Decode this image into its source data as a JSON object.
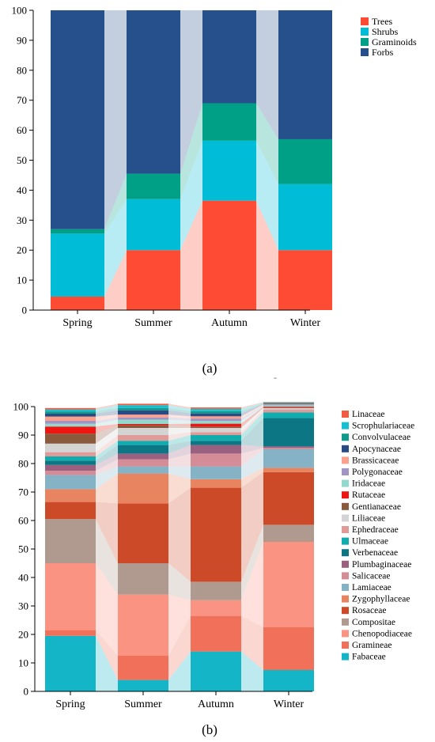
{
  "panel_a": {
    "label": "(a)",
    "label_inner": "a",
    "chart_data": {
      "type": "bar",
      "stacked": true,
      "categories": [
        "Spring",
        "Summer",
        "Autumn",
        "Winter"
      ],
      "ylim": [
        0,
        100
      ],
      "yticks": [
        0,
        10,
        20,
        30,
        40,
        50,
        60,
        70,
        80,
        90,
        100
      ],
      "title": "",
      "xlabel": "",
      "ylabel": "",
      "legend_position": "top-right",
      "series": [
        {
          "name": "Trees",
          "color": "#fd4c33",
          "values": [
            4.5,
            20,
            36.5,
            20
          ]
        },
        {
          "name": "Shrubs",
          "color": "#00bcd6",
          "values": [
            21,
            17,
            20,
            22
          ]
        },
        {
          "name": "Graminoids",
          "color": "#00a086",
          "values": [
            1.5,
            8.5,
            12.5,
            15
          ]
        },
        {
          "name": "Forbs",
          "color": "#26508c",
          "values": [
            73,
            54.5,
            31,
            43
          ]
        }
      ]
    }
  },
  "panel_b": {
    "label": "(b)",
    "label_inner": "b",
    "chart_data": {
      "type": "bar",
      "stacked": true,
      "categories": [
        "Spring",
        "Summer",
        "Autumn",
        "Winter"
      ],
      "ylim": [
        0,
        100
      ],
      "yticks": [
        0,
        10,
        20,
        30,
        40,
        50,
        60,
        70,
        80,
        90,
        100
      ],
      "title": "",
      "xlabel": "",
      "ylabel": "",
      "legend_position": "top-right",
      "series": [
        {
          "name": "Fabaceae",
          "color": "#13b5c6",
          "values": [
            19.5,
            4,
            14,
            7.5
          ]
        },
        {
          "name": "Gramineae",
          "color": "#f0705a",
          "values": [
            2,
            8.5,
            12.5,
            15
          ]
        },
        {
          "name": "Chenopodiaceae",
          "color": "#fb9383",
          "values": [
            23.5,
            21.5,
            5.5,
            30
          ]
        },
        {
          "name": "Compositae",
          "color": "#b09a8f",
          "values": [
            15.5,
            11,
            6.5,
            6
          ]
        },
        {
          "name": "Rosaceae",
          "color": "#cd4a28",
          "values": [
            6,
            21,
            33,
            18.5
          ]
        },
        {
          "name": "Zygophyllaceae",
          "color": "#e88460",
          "values": [
            4.5,
            10.5,
            3,
            1.5
          ]
        },
        {
          "name": "Lamiaceae",
          "color": "#85b2c4",
          "values": [
            5,
            2.5,
            4.5,
            6.5
          ]
        },
        {
          "name": "Salicaceae",
          "color": "#d48c96",
          "values": [
            1.5,
            2.5,
            4.5,
            0.5
          ]
        },
        {
          "name": "Plumbaginaceae",
          "color": "#9a6080",
          "values": [
            2,
            2,
            3,
            0.5
          ]
        },
        {
          "name": "Verbenaceae",
          "color": "#0d7684",
          "values": [
            1.5,
            3,
            1.5,
            10
          ]
        },
        {
          "name": "Ulmaceae",
          "color": "#11adae",
          "values": [
            1.5,
            1.5,
            2,
            2
          ]
        },
        {
          "name": "Ephedraceae",
          "color": "#e09a98",
          "values": [
            1.5,
            2,
            1,
            1
          ]
        },
        {
          "name": "Liliaceae",
          "color": "#d4d4d4",
          "values": [
            3,
            2.5,
            1.5,
            0.5
          ]
        },
        {
          "name": "Gentianaceae",
          "color": "#8b5a3c",
          "values": [
            3.5,
            1,
            0.5,
            0.3
          ]
        },
        {
          "name": "Rutaceae",
          "color": "#ee1512",
          "values": [
            2.5,
            0.4,
            1,
            0.2
          ]
        },
        {
          "name": "Iridaceae",
          "color": "#92d8cc",
          "values": [
            1,
            1.5,
            1,
            0.3
          ]
        },
        {
          "name": "Polygonaceae",
          "color": "#a294c4",
          "values": [
            1,
            0.8,
            0.8,
            0.2
          ]
        },
        {
          "name": "Brassicaceae",
          "color": "#fba08c",
          "values": [
            1.5,
            1,
            0.8,
            0.3
          ]
        },
        {
          "name": "Apocynaceae",
          "color": "#2a4a84",
          "values": [
            1,
            1.5,
            1,
            0.2
          ]
        },
        {
          "name": "Convolvulaceae",
          "color": "#0e9a8c",
          "values": [
            0.8,
            0.8,
            0.8,
            0.2
          ]
        },
        {
          "name": "Scrophulariaceae",
          "color": "#16c0d0",
          "values": [
            0.7,
            1,
            0.8,
            0.2
          ]
        },
        {
          "name": "Linaceae",
          "color": "#f25c40",
          "values": [
            0.5,
            0.5,
            0.5,
            0.2
          ]
        }
      ]
    }
  },
  "separator_mark": "-"
}
